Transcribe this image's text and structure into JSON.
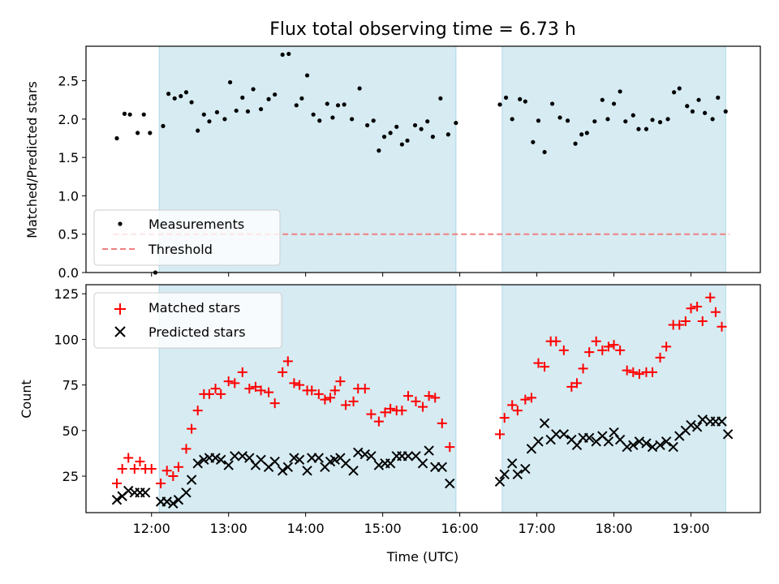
{
  "title": "Flux total observing time = 6.73 h",
  "colors": {
    "band": "#add8e6",
    "measurement": "#000000",
    "threshold": "#f08080",
    "matched": "#ff0000",
    "predicted": "#000000"
  },
  "chart_data": [
    {
      "type": "scatter",
      "ylabel": "Matched/Predicted stars",
      "ylim": [
        0,
        2.95
      ],
      "yticks": [
        0.0,
        0.5,
        1.0,
        1.5,
        2.0,
        2.5
      ],
      "ytick_labels": [
        "0.0",
        "0.5",
        "1.0",
        "1.5",
        "2.0",
        "2.5"
      ],
      "x_unit": "hours UTC",
      "legend_position": "lower-left",
      "shaded_intervals": [
        [
          12.1,
          15.95
        ],
        [
          16.55,
          19.45
        ]
      ],
      "threshold": {
        "name": "Threshold",
        "value": 0.5,
        "x_range": [
          11.5,
          19.5
        ]
      },
      "series": [
        {
          "name": "Measurements",
          "marker": "dot",
          "x": [
            11.55,
            11.65,
            11.72,
            11.82,
            11.9,
            11.98,
            12.05,
            12.15,
            12.22,
            12.3,
            12.38,
            12.45,
            12.52,
            12.6,
            12.68,
            12.75,
            12.85,
            12.95,
            13.02,
            13.1,
            13.18,
            13.25,
            13.32,
            13.42,
            13.52,
            13.6,
            13.7,
            13.78,
            13.88,
            13.95,
            14.02,
            14.1,
            14.18,
            14.28,
            14.35,
            14.42,
            14.5,
            14.6,
            14.7,
            14.8,
            14.88,
            14.95,
            15.02,
            15.1,
            15.18,
            15.25,
            15.32,
            15.42,
            15.5,
            15.58,
            15.65,
            15.75,
            15.85,
            15.95,
            16.0,
            16.52,
            16.6,
            16.68,
            16.78,
            16.85,
            16.95,
            17.02,
            17.1,
            17.2,
            17.3,
            17.4,
            17.5,
            17.58,
            17.65,
            17.75,
            17.85,
            17.92,
            18.0,
            18.08,
            18.15,
            18.25,
            18.32,
            18.42,
            18.5,
            18.6,
            18.7,
            18.78,
            18.85,
            18.95,
            19.02,
            19.1,
            19.18,
            19.28,
            19.35,
            19.45
          ],
          "y": [
            1.75,
            2.07,
            2.06,
            1.82,
            2.06,
            1.82,
            0.0,
            1.91,
            2.33,
            2.27,
            2.3,
            2.35,
            2.22,
            1.85,
            2.06,
            1.97,
            2.09,
            2.0,
            2.48,
            2.11,
            2.28,
            2.1,
            2.39,
            2.13,
            2.26,
            2.32,
            2.84,
            2.85,
            2.18,
            2.27,
            2.57,
            2.06,
            1.98,
            2.2,
            2.02,
            2.18,
            2.19,
            2.0,
            2.4,
            1.92,
            1.98,
            1.59,
            1.77,
            1.82,
            1.9,
            1.67,
            1.72,
            1.92,
            1.87,
            1.97,
            1.77,
            2.27,
            1.8,
            1.95,
            null,
            2.19,
            2.28,
            2.0,
            2.26,
            2.23,
            1.7,
            1.98,
            1.57,
            2.2,
            2.02,
            1.98,
            1.68,
            1.8,
            1.82,
            1.97,
            2.25,
            2.0,
            2.2,
            2.36,
            1.97,
            2.05,
            1.87,
            1.87,
            1.99,
            1.96,
            2.0,
            2.35,
            2.4,
            2.17,
            2.1,
            2.25,
            2.08,
            2.0,
            2.28,
            2.1
          ]
        }
      ]
    },
    {
      "type": "scatter",
      "xlabel": "Time (UTC)",
      "ylabel": "Count",
      "xlim": [
        11.15,
        19.9
      ],
      "ylim": [
        5,
        130
      ],
      "xticks": [
        12,
        13,
        14,
        15,
        16,
        17,
        18,
        19
      ],
      "xtick_labels": [
        "12:00",
        "13:00",
        "14:00",
        "15:00",
        "16:00",
        "17:00",
        "18:00",
        "19:00"
      ],
      "yticks": [
        25,
        50,
        75,
        100,
        125
      ],
      "ytick_labels": [
        "25",
        "50",
        "75",
        "100",
        "125"
      ],
      "legend_position": "upper-left",
      "shaded_intervals": [
        [
          12.1,
          15.95
        ],
        [
          16.55,
          19.45
        ]
      ],
      "series": [
        {
          "name": "Matched stars",
          "marker": "plus",
          "x": [
            11.55,
            11.62,
            11.7,
            11.78,
            11.85,
            11.92,
            12.0,
            12.12,
            12.2,
            12.28,
            12.35,
            12.45,
            12.52,
            12.6,
            12.68,
            12.75,
            12.83,
            12.9,
            13.0,
            13.08,
            13.18,
            13.27,
            13.35,
            13.42,
            13.52,
            13.6,
            13.7,
            13.77,
            13.85,
            13.92,
            14.02,
            14.08,
            14.17,
            14.25,
            14.32,
            14.38,
            14.45,
            14.52,
            14.62,
            14.68,
            14.77,
            14.85,
            14.95,
            15.03,
            15.1,
            15.18,
            15.25,
            15.33,
            15.43,
            15.52,
            15.6,
            15.68,
            15.77,
            15.87,
            15.95,
            16.52,
            16.58,
            16.68,
            16.75,
            16.85,
            16.93,
            17.02,
            17.1,
            17.18,
            17.25,
            17.35,
            17.45,
            17.52,
            17.6,
            17.68,
            17.77,
            17.85,
            17.93,
            18.0,
            18.08,
            18.17,
            18.25,
            18.33,
            18.42,
            18.5,
            18.6,
            18.68,
            18.77,
            18.85,
            18.93,
            19.0,
            19.08,
            19.15,
            19.25,
            19.32,
            19.4,
            19.48
          ],
          "y": [
            21,
            29,
            35,
            29,
            33,
            29,
            29,
            21,
            28,
            25,
            30,
            40,
            51,
            61,
            70,
            70,
            73,
            70,
            77,
            76,
            82,
            73,
            74,
            72,
            71,
            65,
            82,
            88,
            76,
            75,
            72,
            72,
            70,
            67,
            68,
            72,
            77,
            64,
            66,
            73,
            73,
            59,
            55,
            60,
            62,
            61,
            61,
            69,
            66,
            63,
            69,
            68,
            54,
            41,
            null,
            48,
            57,
            64,
            61,
            67,
            68,
            87,
            85,
            99,
            99,
            94,
            74,
            76,
            84,
            93,
            99,
            94,
            96,
            97,
            94,
            83,
            82,
            81,
            82,
            82,
            90,
            96,
            108,
            108,
            110,
            117,
            118,
            110,
            123,
            115,
            107,
            null
          ],
          "note": "matched series aligned by index with its own x"
        },
        {
          "name": "Predicted stars",
          "marker": "x",
          "x": [
            11.55,
            11.62,
            11.7,
            11.78,
            11.85,
            11.92,
            12.12,
            12.2,
            12.28,
            12.35,
            12.45,
            12.52,
            12.6,
            12.68,
            12.75,
            12.83,
            12.9,
            13.0,
            13.08,
            13.18,
            13.27,
            13.35,
            13.42,
            13.52,
            13.6,
            13.7,
            13.77,
            13.85,
            13.92,
            14.02,
            14.08,
            14.17,
            14.25,
            14.32,
            14.38,
            14.45,
            14.52,
            14.62,
            14.68,
            14.77,
            14.85,
            14.95,
            15.03,
            15.1,
            15.18,
            15.25,
            15.33,
            15.43,
            15.52,
            15.6,
            15.68,
            15.77,
            15.87,
            15.95,
            16.52,
            16.58,
            16.68,
            16.75,
            16.85,
            16.93,
            17.02,
            17.1,
            17.18,
            17.25,
            17.35,
            17.45,
            17.52,
            17.6,
            17.68,
            17.77,
            17.85,
            17.93,
            18.0,
            18.08,
            18.17,
            18.25,
            18.33,
            18.42,
            18.5,
            18.6,
            18.68,
            18.77,
            18.85,
            18.93,
            19.0,
            19.08,
            19.15,
            19.25,
            19.32,
            19.4,
            19.48
          ],
          "y": [
            12,
            14,
            17,
            16,
            16,
            16,
            11,
            11,
            10,
            12,
            16,
            23,
            32,
            34,
            35,
            35,
            34,
            31,
            36,
            36,
            35,
            31,
            34,
            30,
            33,
            28,
            30,
            35,
            34,
            28,
            35,
            35,
            30,
            33,
            34,
            35,
            32,
            28,
            38,
            37,
            36,
            31,
            32,
            32,
            36,
            36,
            36,
            36,
            32,
            39,
            30,
            30,
            21,
            null,
            22,
            26,
            32,
            26,
            29,
            40,
            44,
            54,
            45,
            48,
            48,
            45,
            42,
            46,
            46,
            44,
            47,
            44,
            49,
            45,
            41,
            42,
            44,
            43,
            41,
            42,
            44,
            41,
            47,
            50,
            53,
            52,
            56,
            55,
            55,
            55,
            48
          ]
        }
      ]
    }
  ]
}
